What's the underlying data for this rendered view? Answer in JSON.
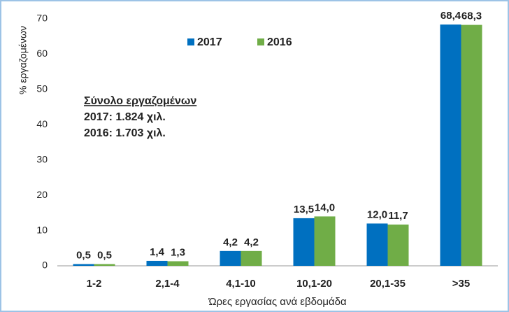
{
  "chart_data": {
    "type": "bar",
    "y_label": "% εργαζομένων",
    "x_label": "Ώρες εργασίας ανά εβδομάδα",
    "categories": [
      "1-2",
      "2,1-4",
      "4,1-10",
      "10,1-20",
      "20,1-35",
      ">35"
    ],
    "series": [
      {
        "name": "2017",
        "color": "#0070c0",
        "values": [
          0.5,
          1.4,
          4.2,
          13.5,
          12.0,
          68.4
        ],
        "value_labels": [
          "0,5",
          "1,4",
          "4,2",
          "13,5",
          "12,0",
          "68,4"
        ]
      },
      {
        "name": "2016",
        "color": "#70ad47",
        "values": [
          0.5,
          1.3,
          4.2,
          14.0,
          11.7,
          68.3
        ],
        "value_labels": [
          "0,5",
          "1,3",
          "4,2",
          "14,0",
          "11,7",
          "68,3"
        ]
      }
    ],
    "annotations": [
      {
        "text": "Σύνολο εργαζομένων",
        "color": "#222222"
      },
      {
        "text": "2017: 1.824 χιλ.",
        "color": "#0070c0"
      },
      {
        "text": "2016: 1.703 χιλ.",
        "color": "#70ad47"
      }
    ],
    "ylim": [
      0,
      70
    ],
    "yticks": [
      0,
      10,
      20,
      30,
      40,
      50,
      60,
      70
    ],
    "grid": false,
    "legend": "top"
  }
}
